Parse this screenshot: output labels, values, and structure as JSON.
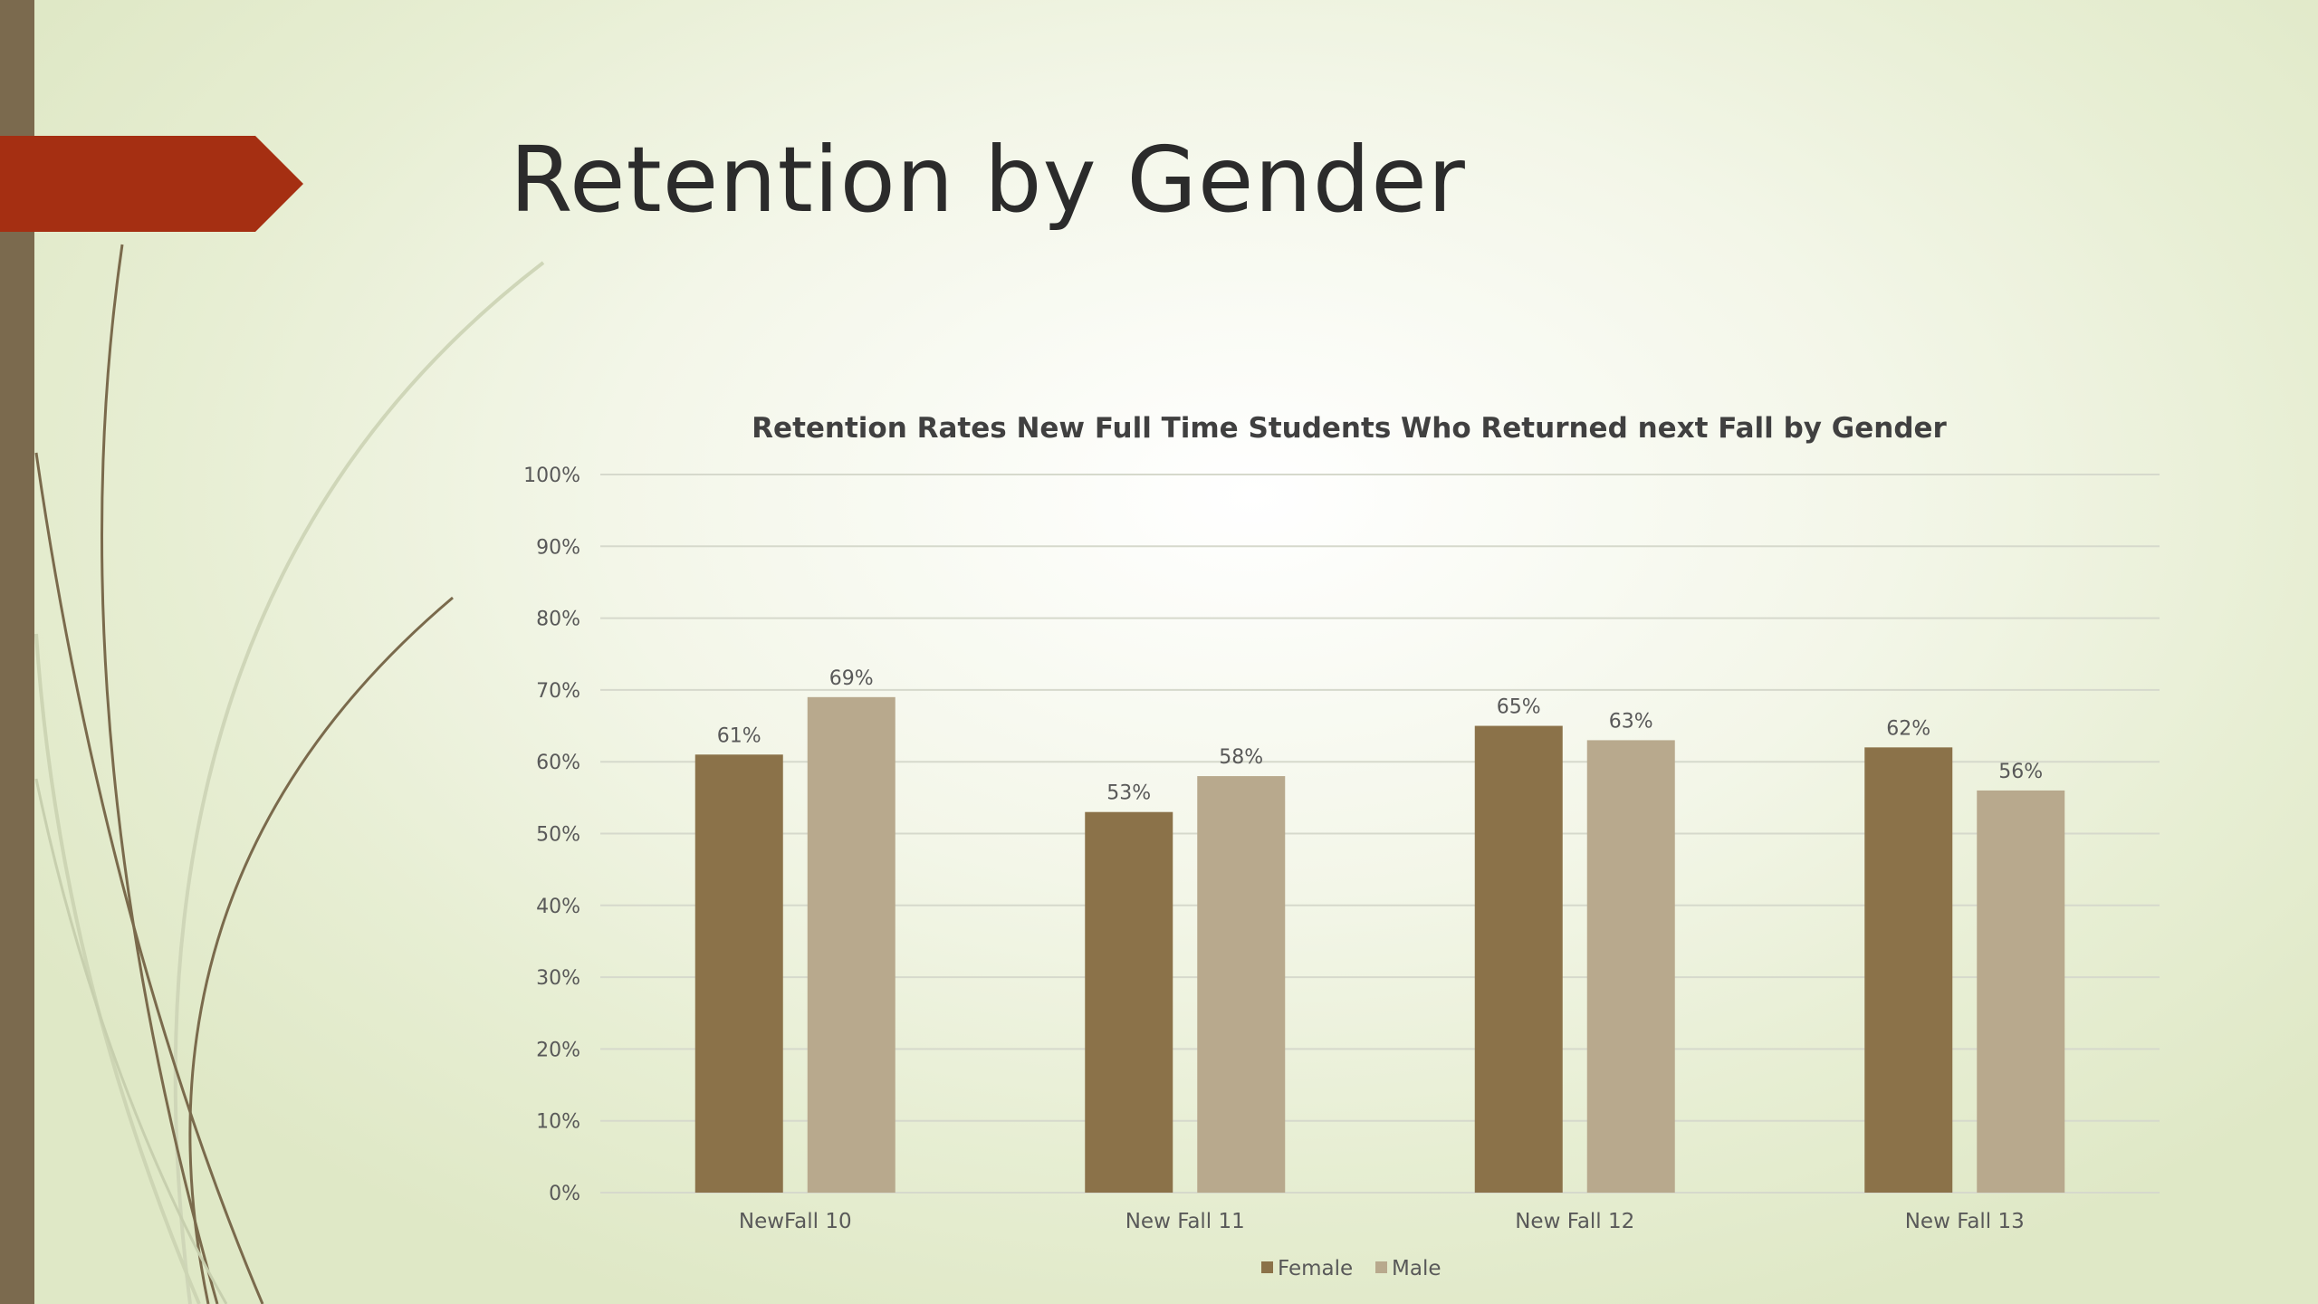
{
  "slide": {
    "title": "Retention by Gender"
  },
  "colors": {
    "accent_arrow": "#a52f12",
    "left_bar": "#7b6a4e",
    "female": "#8b7249",
    "male": "#b8a98d",
    "gridline": "#d6d9cc"
  },
  "chart_data": {
    "type": "bar",
    "title": "Retention Rates New Full Time Students Who Returned next Fall by Gender",
    "categories": [
      "NewFall 10",
      "New Fall 11",
      "New Fall 12",
      "New Fall 13"
    ],
    "series": [
      {
        "name": "Female",
        "values": [
          61,
          53,
          65,
          62
        ],
        "labels": [
          "61%",
          "53%",
          "65%",
          "62%"
        ]
      },
      {
        "name": "Male",
        "values": [
          69,
          58,
          63,
          56
        ],
        "labels": [
          "69%",
          "58%",
          "63%",
          "56%"
        ]
      }
    ],
    "ylim": [
      0,
      100
    ],
    "y_ticks": [
      "0%",
      "10%",
      "20%",
      "30%",
      "40%",
      "50%",
      "60%",
      "70%",
      "80%",
      "90%",
      "100%"
    ],
    "grid": true,
    "legend_position": "bottom"
  }
}
